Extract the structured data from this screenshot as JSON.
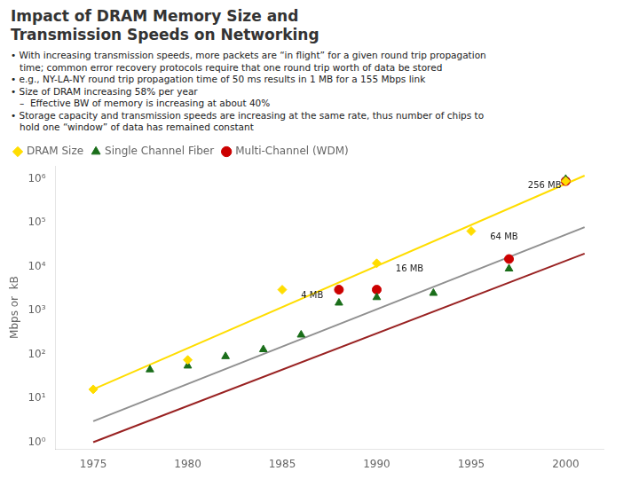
{
  "chart_data": {
    "type": "scatter",
    "title": [
      "Impact of DRAM Memory Size and",
      "Transmission Speeds on Networking"
    ],
    "subtitle": [
      "• With increasing transmission speeds, more packets are “in flight” for a given round trip propagation",
      "   time; common error recovery protocols require that one round trip worth of data be stored",
      "• e.g., NY-LA-NY round trip propagation time of 50 ms results in 1 MB for a 155 Mbps link",
      "• Size of DRAM increasing 58% per year",
      "   –  Effective BW of memory is increasing at about 40%",
      "• Storage capacity and transmission speeds are increasing at the same rate, thus number of chips to",
      "   hold one “window” of data has remained constant"
    ],
    "ylabel": "Mbps or  kB",
    "log": "y",
    "grid": false,
    "legend": "upper left",
    "xlim": [
      1973,
      2002
    ],
    "xticks": [
      1975,
      1980,
      1985,
      1990,
      1995,
      2000
    ],
    "ylim": [
      0.7,
      2000000
    ],
    "yticks": [
      {
        "value": 1,
        "label": "10⁰"
      },
      {
        "value": 10,
        "label": "10¹"
      },
      {
        "value": 100,
        "label": "10²"
      },
      {
        "value": 1000,
        "label": "10³"
      },
      {
        "value": 10000,
        "label": "10⁴"
      },
      {
        "value": 100000,
        "label": "10⁵"
      },
      {
        "value": 1000000,
        "label": "10⁶"
      }
    ],
    "series": [
      {
        "type": "line",
        "color": "#ffdd00",
        "x": [
          1975,
          2001
        ],
        "values": [
          16,
          1200000
        ]
      },
      {
        "type": "line",
        "color": "#909090",
        "x": [
          1975,
          2001
        ],
        "values": [
          3,
          80000
        ]
      },
      {
        "type": "line",
        "color": "#992222",
        "x": [
          1975,
          2001
        ],
        "values": [
          1,
          20000
        ]
      },
      {
        "name": "DRAM Size",
        "type": "scatter",
        "marker": "diamond",
        "color": "#ffdd00",
        "x": [
          1975,
          1980,
          1985,
          1990,
          1995,
          2000
        ],
        "values": [
          16,
          75,
          3000,
          12000,
          65000,
          900000
        ]
      },
      {
        "name": "Single Channel Fiber",
        "type": "scatter",
        "marker": "triangle",
        "color": "#1a6e1a",
        "x": [
          1978,
          1980,
          1982,
          1984,
          1986,
          1988,
          1990,
          1993,
          1997,
          2000
        ],
        "values": [
          45,
          55,
          90,
          130,
          280,
          1500,
          2000,
          2500,
          9000,
          1000000
        ]
      },
      {
        "name": "Multi-Channel (WDM)",
        "type": "scatter",
        "marker": "circle",
        "color": "#cc0000",
        "x": [
          1988,
          1990,
          1997,
          2000
        ],
        "values": [
          3000,
          3000,
          15000,
          900000
        ]
      }
    ],
    "annotations": [
      {
        "text": "4 MB",
        "x": 1986,
        "y": 2200
      },
      {
        "text": "16 MB",
        "x": 1991,
        "y": 9000
      },
      {
        "text": "64 MB",
        "x": 1996,
        "y": 48000
      },
      {
        "text": "256 MB",
        "x": 1998,
        "y": 700000
      }
    ]
  }
}
